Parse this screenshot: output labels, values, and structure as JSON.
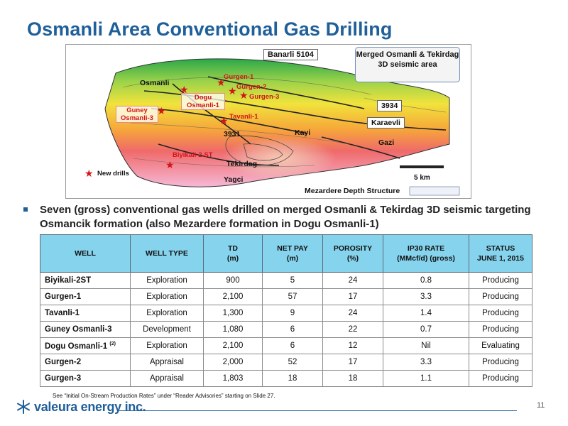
{
  "slide": {
    "title": "Osmanli Area Conventional Gas Drilling",
    "page_number": "11"
  },
  "map": {
    "header_label": "Banarli 5104",
    "callout": "Merged Osmanli & Tekirdag 3D seismic area",
    "caption": "Mezardere Depth Structure",
    "scale_label": "5 km",
    "legend_label": "New drills",
    "place_labels": {
      "osmanli": "Osmanli",
      "tekirdag": "Tekirdag",
      "yagci": "Yagci",
      "kayi": "Kayi",
      "karaevli": "Karaevli",
      "gazi": "Gazi",
      "well_3931": "3931",
      "well_3934": "3934"
    },
    "drill_labels": {
      "gurgen1": "Gurgen-1",
      "gurgen2": "Gurgen-2",
      "gurgen3": "Gurgen-3",
      "dogu": "Dogu Osmanli-1",
      "guney": "Guney Osmanli-3",
      "tavanli": "Tavanli-1",
      "biyikali": "Biyikali-2 ST"
    }
  },
  "bullet": "Seven (gross) conventional gas wells drilled on merged Osmanli & Tekirdag 3D seismic targeting Osmancik formation (also Mezardere formation in Dogu Osmanli-1)",
  "table": {
    "headers": {
      "well": "WELL",
      "type": "WELL TYPE",
      "td": "TD",
      "td_unit": "(m)",
      "netpay": "NET PAY",
      "netpay_unit": "(m)",
      "porosity": "POROSITY",
      "porosity_unit": "(%)",
      "ip30": "IP30 RATE",
      "ip30_unit": "(MMcf/d) (gross)",
      "status": "STATUS",
      "status_date": "JUNE 1, 2015"
    },
    "rows": [
      {
        "well": "Biyikali-2ST",
        "sup": "",
        "type": "Exploration",
        "td": "900",
        "netpay": "5",
        "porosity": "24",
        "ip30": "0.8",
        "status": "Producing"
      },
      {
        "well": "Gurgen-1",
        "sup": "",
        "type": "Exploration",
        "td": "2,100",
        "netpay": "57",
        "porosity": "17",
        "ip30": "3.3",
        "status": "Producing"
      },
      {
        "well": "Tavanli-1",
        "sup": "",
        "type": "Exploration",
        "td": "1,300",
        "netpay": "9",
        "porosity": "24",
        "ip30": "1.4",
        "status": "Producing"
      },
      {
        "well": "Guney Osmanli-3",
        "sup": "",
        "type": "Development",
        "td": "1,080",
        "netpay": "6",
        "porosity": "22",
        "ip30": "0.7",
        "status": "Producing"
      },
      {
        "well": "Dogu Osmanli-1",
        "sup": "(2)",
        "type": "Exploration",
        "td": "2,100",
        "netpay": "6",
        "porosity": "12",
        "ip30": "Nil",
        "status": "Evaluating"
      },
      {
        "well": "Gurgen-2",
        "sup": "",
        "type": "Appraisal",
        "td": "2,000",
        "netpay": "52",
        "porosity": "17",
        "ip30": "3.3",
        "status": "Producing"
      },
      {
        "well": "Gurgen-3",
        "sup": "",
        "type": "Appraisal",
        "td": "1,803",
        "netpay": "18",
        "porosity": "18",
        "ip30": "1.1",
        "status": "Producing"
      }
    ]
  },
  "footnote": "See “Initial On-Stream Production Rates” under “Reader Advisories” starting on Slide 27.",
  "logo_text": "valeura energy inc.",
  "colors": {
    "title_blue": "#1f5f9a",
    "header_cyan": "#86d3ed",
    "drill_red": "#d4141a"
  },
  "icons": {
    "drill_marker": "red-star-icon",
    "bullet": "square-bullet-icon",
    "logo": "snowflake-logo-icon"
  }
}
